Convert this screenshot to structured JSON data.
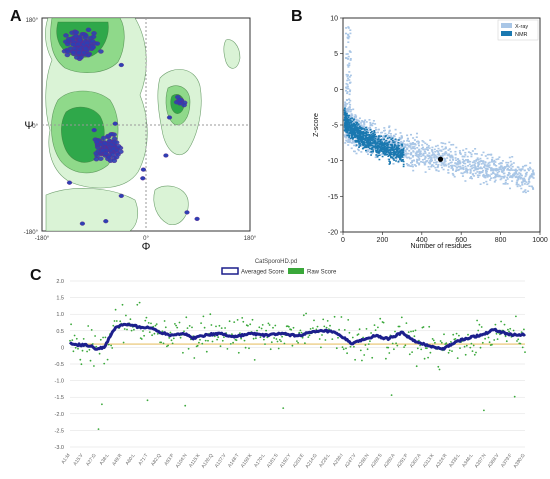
{
  "panels": {
    "a": {
      "letter": "A"
    },
    "b": {
      "letter": "B"
    },
    "c": {
      "letter": "C"
    }
  },
  "chart_data": [
    {
      "id": "ramachandran",
      "type": "scatter",
      "xlabel": "Φ",
      "ylabel": "Ψ",
      "xlim": [
        -180,
        180
      ],
      "ylim": [
        -180,
        180
      ],
      "x_ticks": [
        "-180°",
        "0°",
        "180°"
      ],
      "y_ticks": [
        "180°",
        "0°",
        "-180°"
      ],
      "regions": [
        {
          "name": "beta-favoured",
          "center": [
            -110,
            135
          ],
          "radius": [
            40,
            30
          ]
        },
        {
          "name": "alpha-favoured",
          "center": [
            -65,
            -40
          ],
          "radius": [
            28,
            30
          ]
        },
        {
          "name": "left-alpha",
          "center": [
            60,
            40
          ],
          "radius": [
            12,
            15
          ]
        }
      ],
      "colors": {
        "allowed": "#daf3d6",
        "favoured": "#8fd98a",
        "core": "#2fa84a",
        "points": "#2d3fb4",
        "outline": "#3a7a3a"
      },
      "grid": "dashed at 0"
    },
    {
      "id": "zscore",
      "type": "scatter",
      "xlabel": "Number of residues",
      "ylabel": "Z-score",
      "xlim": [
        0,
        1000
      ],
      "ylim": [
        -20,
        10
      ],
      "x_ticks": [
        0,
        200,
        400,
        600,
        800,
        1000
      ],
      "y_ticks": [
        10,
        5,
        0,
        -5,
        -10,
        -15,
        -20
      ],
      "legend": "top-right",
      "series": [
        {
          "name": "X-ray",
          "color": "#a9c6e6"
        },
        {
          "name": "NMR",
          "color": "#1a78b0"
        }
      ],
      "highlight_point": {
        "x": 495,
        "y": -9.8,
        "color": "#000000"
      }
    },
    {
      "id": "verify3d",
      "type": "line",
      "title": "CatSporoHD.pd",
      "ylim": [
        -3.0,
        2.0
      ],
      "y_ticks": [
        "2.0",
        "1.5",
        "1.0",
        "0.5",
        "0",
        "-0.5",
        "-1.0",
        "-1.5",
        "-2.0",
        "-2.5",
        "-3.0"
      ],
      "x_tick_labels": [
        "A1:M",
        "A15:V",
        "A27:G",
        "A38:L",
        "A49:R",
        "A60:L",
        "A71:T",
        "A82:Q",
        "A93:P",
        "A104:N",
        "A115:K",
        "A126:Q",
        "A137:V",
        "A148:T",
        "A159:K",
        "A170:L",
        "A181:S",
        "A192:Y",
        "A203:E",
        "A214:G",
        "A225:L",
        "A236:I",
        "A247:V",
        "A258:N",
        "A269:S",
        "A280:A",
        "A291:P",
        "A302:A",
        "A313:K",
        "A324:R",
        "A335:L",
        "A346:L",
        "A357:N",
        "A368:V",
        "A379:F",
        "A390:G"
      ],
      "series": [
        {
          "name": "Averaged Score",
          "color": "#1c1f8c"
        },
        {
          "name": "Raw Score",
          "color": "#3aa83a"
        }
      ],
      "averaged_score_profile": [
        {
          "x": 0.0,
          "y": 0.1
        },
        {
          "x": 0.02,
          "y": 0.08
        },
        {
          "x": 0.04,
          "y": 0.06
        },
        {
          "x": 0.06,
          "y": -0.05
        },
        {
          "x": 0.075,
          "y": 0.0
        },
        {
          "x": 0.085,
          "y": 0.25
        },
        {
          "x": 0.1,
          "y": 0.6
        },
        {
          "x": 0.12,
          "y": 0.7
        },
        {
          "x": 0.15,
          "y": 0.62
        },
        {
          "x": 0.18,
          "y": 0.58
        },
        {
          "x": 0.2,
          "y": 0.45
        },
        {
          "x": 0.22,
          "y": 0.38
        },
        {
          "x": 0.25,
          "y": 0.42
        },
        {
          "x": 0.27,
          "y": 0.28
        },
        {
          "x": 0.3,
          "y": 0.38
        },
        {
          "x": 0.33,
          "y": 0.42
        },
        {
          "x": 0.36,
          "y": 0.32
        },
        {
          "x": 0.4,
          "y": 0.42
        },
        {
          "x": 0.43,
          "y": 0.36
        },
        {
          "x": 0.46,
          "y": 0.42
        },
        {
          "x": 0.5,
          "y": 0.35
        },
        {
          "x": 0.53,
          "y": 0.45
        },
        {
          "x": 0.56,
          "y": 0.5
        },
        {
          "x": 0.58,
          "y": 0.45
        },
        {
          "x": 0.6,
          "y": 0.3
        },
        {
          "x": 0.62,
          "y": 0.12
        },
        {
          "x": 0.64,
          "y": 0.2
        },
        {
          "x": 0.67,
          "y": 0.35
        },
        {
          "x": 0.7,
          "y": 0.25
        },
        {
          "x": 0.73,
          "y": 0.45
        },
        {
          "x": 0.76,
          "y": 0.15
        },
        {
          "x": 0.79,
          "y": 0.05
        },
        {
          "x": 0.82,
          "y": -0.05
        },
        {
          "x": 0.85,
          "y": 0.18
        },
        {
          "x": 0.88,
          "y": 0.3
        },
        {
          "x": 0.91,
          "y": 0.4
        },
        {
          "x": 0.93,
          "y": 0.55
        },
        {
          "x": 0.95,
          "y": 0.45
        },
        {
          "x": 0.97,
          "y": 0.38
        },
        {
          "x": 1.0,
          "y": 0.38
        }
      ],
      "reference_line": {
        "y": 0.1,
        "color": "#e0b040"
      }
    }
  ]
}
